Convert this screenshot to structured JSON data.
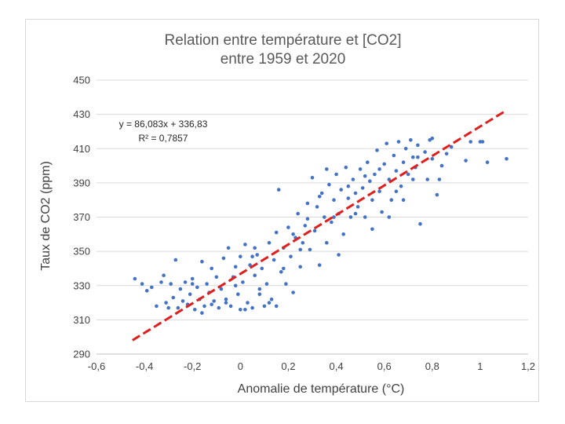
{
  "chart_data": {
    "type": "scatter",
    "title_lines": [
      "Relation entre température et [CO2]",
      "entre 1959 et 2020"
    ],
    "xlabel": "Anomalie de température (°C)",
    "ylabel": "Taux de CO2 (ppm)",
    "xlim": [
      -0.6,
      1.2
    ],
    "ylim": [
      290,
      450
    ],
    "x_ticks": [
      -0.6,
      -0.4,
      -0.2,
      0,
      0.2,
      0.4,
      0.6,
      0.8,
      1,
      1.2
    ],
    "x_tick_labels": [
      "-0,6",
      "-0,4",
      "-0,2",
      "0",
      "0,2",
      "0,4",
      "0,6",
      "0,8",
      "1",
      "1,2"
    ],
    "y_ticks": [
      290,
      310,
      330,
      350,
      370,
      390,
      410,
      430,
      450
    ],
    "y_tick_labels": [
      "290",
      "310",
      "330",
      "350",
      "370",
      "390",
      "410",
      "430",
      "450"
    ],
    "grid": "horizontal",
    "series": [
      {
        "color": "#4472c4",
        "points": [
          [
            -0.44,
            334
          ],
          [
            -0.41,
            331
          ],
          [
            -0.39,
            327
          ],
          [
            -0.37,
            329
          ],
          [
            -0.35,
            318
          ],
          [
            -0.33,
            332
          ],
          [
            -0.32,
            336
          ],
          [
            -0.31,
            320
          ],
          [
            -0.3,
            317
          ],
          [
            -0.29,
            331
          ],
          [
            -0.28,
            323
          ],
          [
            -0.27,
            345
          ],
          [
            -0.26,
            317
          ],
          [
            -0.25,
            328
          ],
          [
            -0.24,
            321
          ],
          [
            -0.23,
            332
          ],
          [
            -0.22,
            319
          ],
          [
            -0.21,
            325
          ],
          [
            -0.2,
            334
          ],
          [
            -0.19,
            316
          ],
          [
            -0.18,
            329
          ],
          [
            -0.17,
            322
          ],
          [
            -0.16,
            344
          ],
          [
            -0.15,
            318
          ],
          [
            -0.14,
            331
          ],
          [
            -0.13,
            326
          ],
          [
            -0.12,
            340
          ],
          [
            -0.11,
            321
          ],
          [
            -0.1,
            335
          ],
          [
            -0.09,
            317
          ],
          [
            -0.08,
            328
          ],
          [
            -0.07,
            346
          ],
          [
            -0.06,
            322
          ],
          [
            -0.05,
            352
          ],
          [
            -0.04,
            318
          ],
          [
            -0.03,
            335
          ],
          [
            -0.02,
            341
          ],
          [
            -0.01,
            325
          ],
          [
            0.0,
            347
          ],
          [
            0.0,
            316
          ],
          [
            0.01,
            332
          ],
          [
            0.02,
            354
          ],
          [
            0.03,
            320
          ],
          [
            0.04,
            342
          ],
          [
            0.05,
            317
          ],
          [
            0.06,
            336
          ],
          [
            0.07,
            348
          ],
          [
            0.08,
            325
          ],
          [
            0.09,
            340
          ],
          [
            0.1,
            318
          ],
          [
            0.11,
            331
          ],
          [
            0.12,
            355
          ],
          [
            0.13,
            322
          ],
          [
            0.14,
            345
          ],
          [
            0.15,
            361
          ],
          [
            0.15,
            318
          ],
          [
            0.16,
            386
          ],
          [
            0.17,
            338
          ],
          [
            0.18,
            352
          ],
          [
            0.19,
            331
          ],
          [
            0.2,
            364
          ],
          [
            0.21,
            347
          ],
          [
            0.22,
            326
          ],
          [
            0.23,
            358
          ],
          [
            0.24,
            372
          ],
          [
            0.25,
            341
          ],
          [
            0.26,
            355
          ],
          [
            0.27,
            365
          ],
          [
            0.28,
            378
          ],
          [
            0.29,
            351
          ],
          [
            0.3,
            393
          ],
          [
            0.31,
            362
          ],
          [
            0.32,
            376
          ],
          [
            0.33,
            342
          ],
          [
            0.34,
            384
          ],
          [
            0.35,
            370
          ],
          [
            0.36,
            355
          ],
          [
            0.37,
            389
          ],
          [
            0.38,
            367
          ],
          [
            0.39,
            380
          ],
          [
            0.4,
            395
          ],
          [
            0.41,
            372
          ],
          [
            0.42,
            386
          ],
          [
            0.43,
            360
          ],
          [
            0.44,
            399
          ],
          [
            0.45,
            381
          ],
          [
            0.46,
            370
          ],
          [
            0.47,
            392
          ],
          [
            0.48,
            384
          ],
          [
            0.49,
            376
          ],
          [
            0.5,
            398
          ],
          [
            0.51,
            387
          ],
          [
            0.52,
            370
          ],
          [
            0.53,
            402
          ],
          [
            0.54,
            391
          ],
          [
            0.55,
            380
          ],
          [
            0.56,
            395
          ],
          [
            0.57,
            409
          ],
          [
            0.58,
            385
          ],
          [
            0.59,
            373
          ],
          [
            0.6,
            401
          ],
          [
            0.61,
            413
          ],
          [
            0.62,
            392
          ],
          [
            0.63,
            380
          ],
          [
            0.64,
            406
          ],
          [
            0.65,
            397
          ],
          [
            0.66,
            414
          ],
          [
            0.67,
            388
          ],
          [
            0.68,
            402
          ],
          [
            0.69,
            410
          ],
          [
            0.7,
            395
          ],
          [
            0.71,
            415
          ],
          [
            0.72,
            405
          ],
          [
            0.73,
            399
          ],
          [
            0.74,
            412
          ],
          [
            0.75,
            366
          ],
          [
            0.77,
            408
          ],
          [
            0.79,
            415
          ],
          [
            0.8,
            404
          ],
          [
            0.82,
            383
          ],
          [
            0.84,
            400
          ],
          [
            0.86,
            407
          ],
          [
            0.88,
            411
          ],
          [
            0.94,
            403
          ],
          [
            0.96,
            414
          ],
          [
            1.0,
            414
          ],
          [
            1.01,
            414
          ],
          [
            1.03,
            402
          ],
          [
            1.11,
            404
          ],
          [
            -0.2,
            331
          ],
          [
            -0.16,
            314
          ],
          [
            -0.12,
            319
          ],
          [
            -0.06,
            320
          ],
          [
            0.05,
            347
          ],
          [
            0.08,
            328
          ],
          [
            0.12,
            320
          ],
          [
            0.18,
            340
          ],
          [
            0.22,
            360
          ],
          [
            0.25,
            351
          ],
          [
            0.28,
            369
          ],
          [
            0.33,
            382
          ],
          [
            0.36,
            398
          ],
          [
            0.39,
            370
          ],
          [
            0.41,
            348
          ],
          [
            0.45,
            388
          ],
          [
            0.48,
            372
          ],
          [
            0.52,
            394
          ],
          [
            0.55,
            363
          ],
          [
            0.58,
            398
          ],
          [
            0.62,
            370
          ],
          [
            0.65,
            385
          ],
          [
            0.68,
            380
          ],
          [
            0.72,
            392
          ],
          [
            0.74,
            405
          ],
          [
            0.78,
            392
          ],
          [
            0.8,
            416
          ],
          [
            0.83,
            392
          ],
          [
            -0.02,
            330
          ],
          [
            0.02,
            316
          ],
          [
            0.06,
            352
          ]
        ]
      }
    ],
    "trendline": {
      "x_range": [
        -0.45,
        1.11
      ],
      "slope": 86.083,
      "intercept": 336.83,
      "color": "#e01f1f",
      "style": "dashed"
    },
    "annotation": {
      "equation": "y = 86,083x + 336,83",
      "r2": "R² = 0,7857"
    }
  }
}
